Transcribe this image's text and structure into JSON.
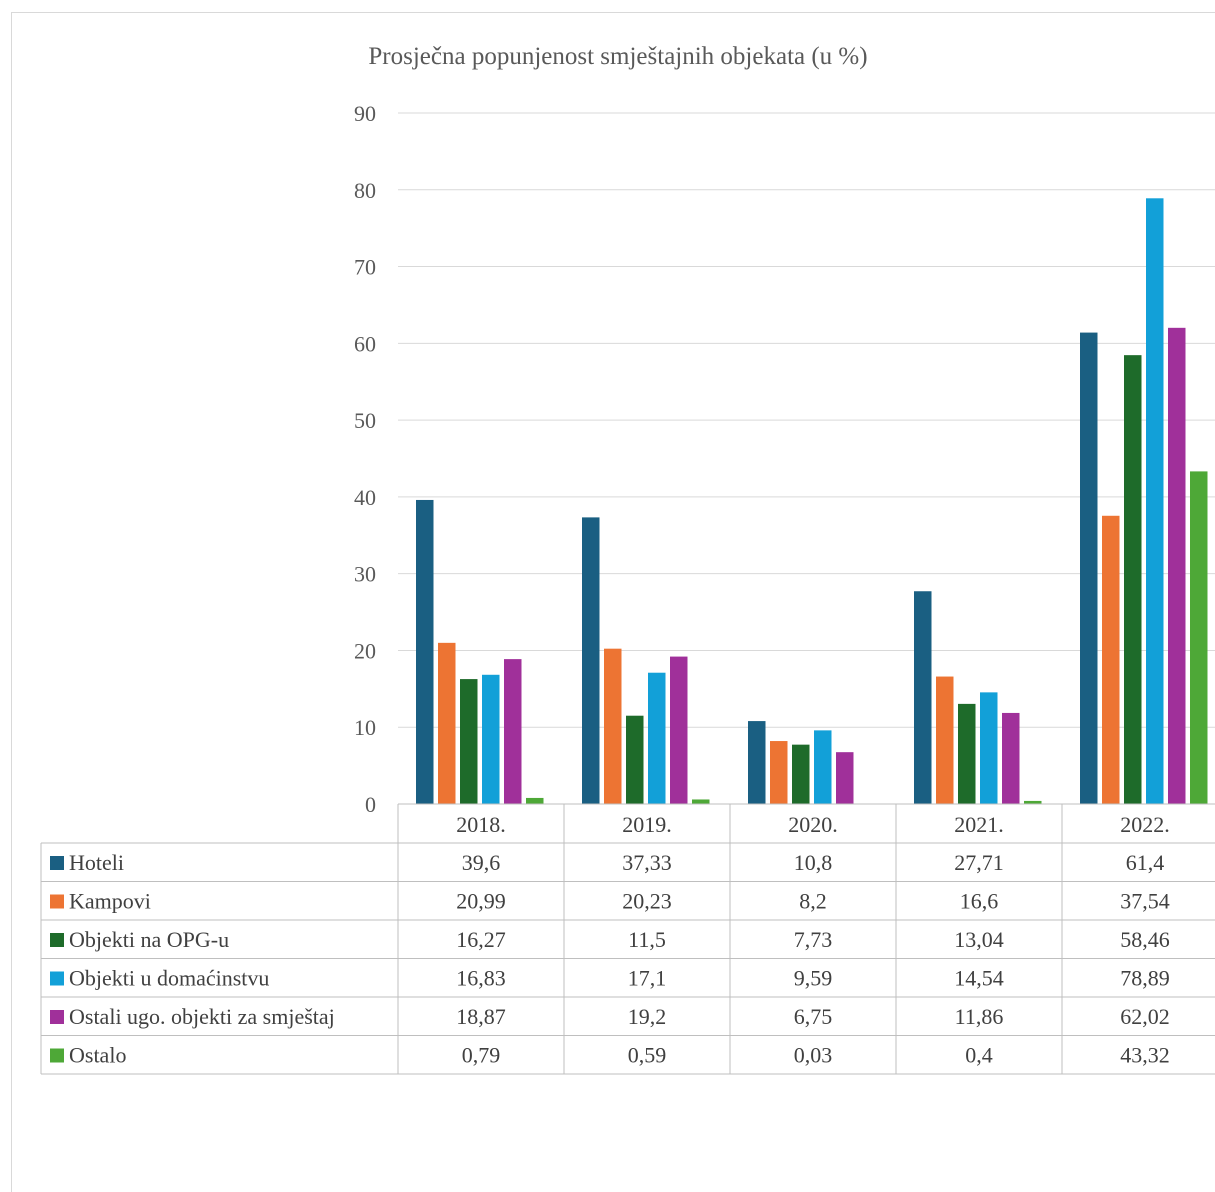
{
  "chart_data": {
    "type": "bar",
    "title": "Prosječna popunjenost smještajnih objekata (u %)",
    "categories": [
      "2018.",
      "2019.",
      "2020.",
      "2021.",
      "2022."
    ],
    "ylim": [
      0,
      90
    ],
    "yticks": [
      "0",
      "10",
      "20",
      "30",
      "40",
      "50",
      "60",
      "70",
      "80",
      "90"
    ],
    "grid": true,
    "legend": "data-table",
    "series": [
      {
        "name": "Hoteli",
        "color": "#1a5f82",
        "values": [
          39.6,
          37.33,
          10.8,
          27.71,
          61.4
        ],
        "labels": [
          "39,6",
          "37,33",
          "10,8",
          "27,71",
          "61,4"
        ]
      },
      {
        "name": "Kampovi",
        "color": "#ed7433",
        "values": [
          20.99,
          20.23,
          8.2,
          16.6,
          37.54
        ],
        "labels": [
          "20,99",
          "20,23",
          "8,2",
          "16,6",
          "37,54"
        ]
      },
      {
        "name": "Objekti na OPG-u",
        "color": "#1e6b2a",
        "values": [
          16.27,
          11.5,
          7.73,
          13.04,
          58.46
        ],
        "labels": [
          "16,27",
          "11,5",
          "7,73",
          "13,04",
          "58,46"
        ]
      },
      {
        "name": "Objekti u domaćinstvu",
        "color": "#12a0d8",
        "values": [
          16.83,
          17.1,
          9.59,
          14.54,
          78.89
        ],
        "labels": [
          "16,83",
          "17,1",
          "9,59",
          "14,54",
          "78,89"
        ]
      },
      {
        "name": "Ostali ugo. objekti za smještaj",
        "color": "#a0309a",
        "values": [
          18.87,
          19.2,
          6.75,
          11.86,
          62.02
        ],
        "labels": [
          "18,87",
          "19,2",
          "6,75",
          "11,86",
          "62,02"
        ]
      },
      {
        "name": "Ostalo",
        "color": "#4ea837",
        "values": [
          0.79,
          0.59,
          0.03,
          0.4,
          43.32
        ],
        "labels": [
          "0,79",
          "0,59",
          "0,03",
          "0,4",
          "43,32"
        ]
      }
    ]
  }
}
